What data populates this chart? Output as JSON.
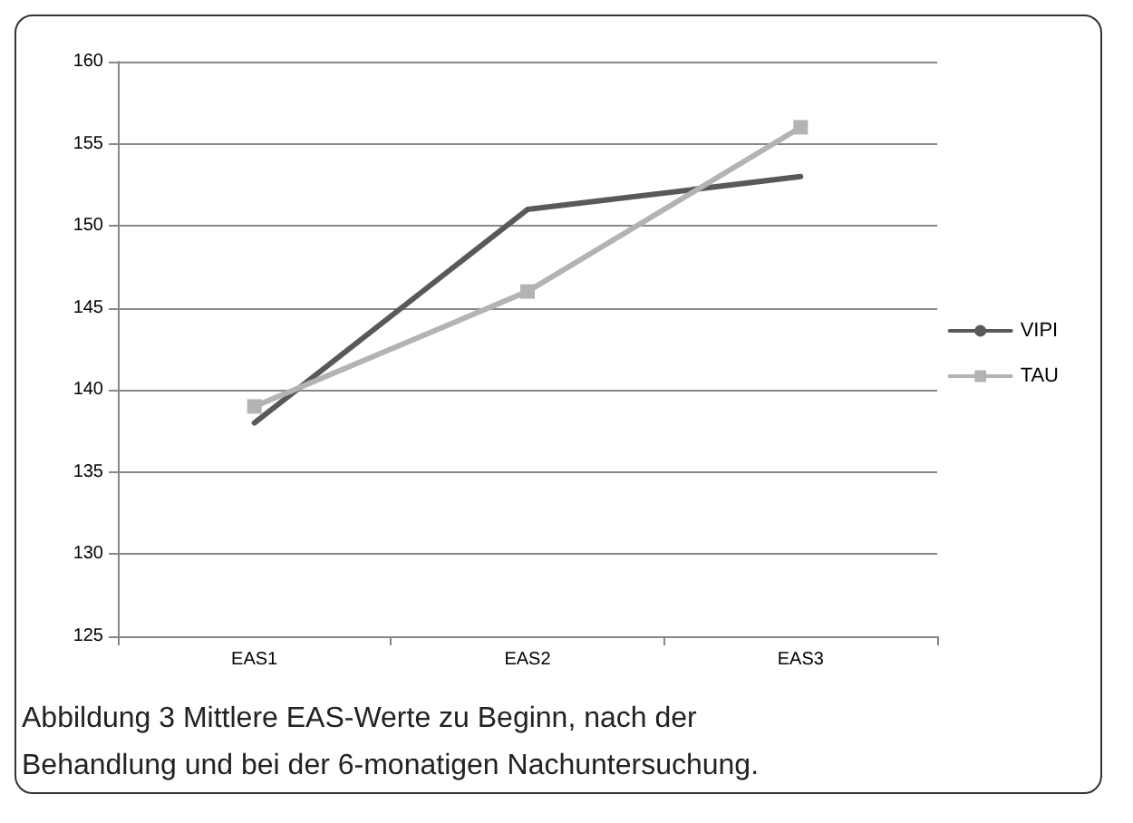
{
  "chart_data": {
    "type": "line",
    "categories": [
      "EAS1",
      "EAS2",
      "EAS3"
    ],
    "series": [
      {
        "name": "VIPI",
        "color": "#595959",
        "values": [
          138,
          151,
          153
        ],
        "marker": "none"
      },
      {
        "name": "TAU",
        "color": "#b3b3b3",
        "values": [
          139,
          146,
          156
        ],
        "marker": "square"
      }
    ],
    "ylim": [
      125,
      160
    ],
    "yticks": [
      125,
      130,
      135,
      140,
      145,
      150,
      155,
      160
    ],
    "grid": "y",
    "legend": "right",
    "annotations": [
      "Abbildung 3 Mittlere EAS-Werte zu Beginn, nach der Behandlung und bei der 6-monatigen Nachuntersuchung."
    ]
  }
}
